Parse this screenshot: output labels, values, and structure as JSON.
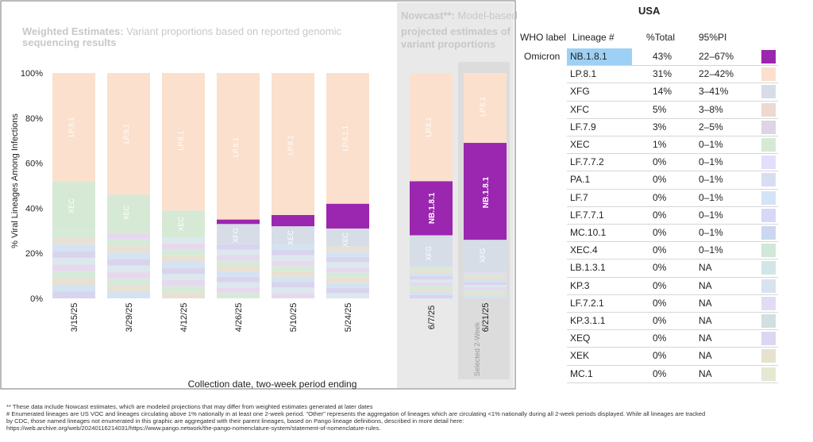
{
  "chart_data": {
    "type": "bar",
    "stacked": true,
    "left_panel_title_bold": "Weighted Estimates:",
    "left_panel_title_rest": "Variant proportions based on reported genomic sequencing results",
    "right_panel_title_bold": "Nowcast**:",
    "right_panel_title_rest": "Model-based projected estimates of variant proportions",
    "ylabel": "% Viral Lineages Among Infections",
    "xlabel": "Collection date, two-week period ending",
    "yticks": [
      "0%",
      "20%",
      "40%",
      "60%",
      "80%",
      "100%"
    ],
    "ylim": [
      0,
      100
    ],
    "selected_label": "Selected 2-Week",
    "categories": [
      "3/15/25",
      "3/29/25",
      "4/12/25",
      "4/26/25",
      "5/10/25",
      "5/24/25",
      "6/7/25",
      "6/21/25"
    ],
    "nowcast_start_index": 6,
    "series": [
      {
        "name": "NB.1.8.1",
        "color": "#9b26af",
        "values": [
          0,
          0,
          0,
          2,
          5,
          11,
          24,
          43
        ]
      },
      {
        "name": "LP.8.1",
        "color": "#fbe0cd",
        "values": [
          48,
          54,
          61,
          65,
          63,
          58,
          48,
          31
        ]
      },
      {
        "name": "XEC",
        "color": "#d6e9d4",
        "values": [
          22,
          17,
          12,
          0,
          0,
          0,
          0,
          0
        ]
      },
      {
        "name": "XFG",
        "color": "#d6dde7",
        "values": [
          0,
          0,
          0,
          9,
          8,
          8,
          14,
          14
        ]
      },
      {
        "name": "other",
        "color": "#e4e4ef",
        "values": [
          30,
          29,
          27,
          24,
          24,
          23,
          14,
          12
        ]
      }
    ],
    "bar_labels": [
      {
        "bar": 0,
        "text": "LP.8.1",
        "at": 76
      },
      {
        "bar": 1,
        "text": "LP.8.1",
        "at": 73
      },
      {
        "bar": 2,
        "text": "LP.8.1",
        "at": 70
      },
      {
        "bar": 3,
        "text": "LP.8.1",
        "at": 67
      },
      {
        "bar": 4,
        "text": "LP.8.1",
        "at": 68
      },
      {
        "bar": 5,
        "text": "LP.8.1.1",
        "at": 71
      },
      {
        "bar": 6,
        "text": "LP.8.1",
        "at": 76
      },
      {
        "bar": 7,
        "text": "LP.8.1",
        "at": 85
      },
      {
        "bar": 0,
        "text": "XEC",
        "at": 41
      },
      {
        "bar": 1,
        "text": "XEC",
        "at": 38
      },
      {
        "bar": 2,
        "text": "XEC",
        "at": 33
      },
      {
        "bar": 3,
        "text": "XFG",
        "at": 28
      },
      {
        "bar": 4,
        "text": "XEC",
        "at": 27
      },
      {
        "bar": 5,
        "text": "XEC",
        "at": 26
      },
      {
        "bar": 6,
        "text": "XFG",
        "at": 20
      },
      {
        "bar": 7,
        "text": "XFG",
        "at": 19
      }
    ],
    "big_labels": [
      {
        "bar": 6,
        "text": "NB.1.8.1",
        "at": 40
      },
      {
        "bar": 7,
        "text": "NB.1.8.1",
        "at": 47
      }
    ]
  },
  "table": {
    "title": "USA",
    "headers": {
      "who": "WHO label",
      "lineage": "Lineage #",
      "pct": "%Total",
      "pi": "95%PI"
    },
    "rows": [
      {
        "who": "Omicron",
        "lineage": "NB.1.8.1",
        "pct": "43%",
        "pi": "22–67%",
        "color": "#9b26af",
        "highlight": true
      },
      {
        "who": "",
        "lineage": "LP.8.1",
        "pct": "31%",
        "pi": "22–42%",
        "color": "#fbe0cd"
      },
      {
        "who": "",
        "lineage": "XFG",
        "pct": "14%",
        "pi": "3–41%",
        "color": "#d6dde7"
      },
      {
        "who": "",
        "lineage": "XFC",
        "pct": "5%",
        "pi": "3–8%",
        "color": "#ecd9cf"
      },
      {
        "who": "",
        "lineage": "LF.7.9",
        "pct": "3%",
        "pi": "2–5%",
        "color": "#ddd4e6"
      },
      {
        "who": "",
        "lineage": "XEC",
        "pct": "1%",
        "pi": "0–1%",
        "color": "#d6e9d4"
      },
      {
        "who": "",
        "lineage": "LF.7.7.2",
        "pct": "0%",
        "pi": "0–1%",
        "color": "#e3def9"
      },
      {
        "who": "",
        "lineage": "PA.1",
        "pct": "0%",
        "pi": "0–1%",
        "color": "#d7def2"
      },
      {
        "who": "",
        "lineage": "LF.7",
        "pct": "0%",
        "pi": "0–1%",
        "color": "#d3e4f5"
      },
      {
        "who": "",
        "lineage": "LF.7.7.1",
        "pct": "0%",
        "pi": "0–1%",
        "color": "#d7d8f7"
      },
      {
        "who": "",
        "lineage": "MC.10.1",
        "pct": "0%",
        "pi": "0–1%",
        "color": "#cbd7f0"
      },
      {
        "who": "",
        "lineage": "XEC.4",
        "pct": "0%",
        "pi": "0–1%",
        "color": "#cfe8d8"
      },
      {
        "who": "",
        "lineage": "LB.1.3.1",
        "pct": "0%",
        "pi": "NA",
        "color": "#d3e6e6"
      },
      {
        "who": "",
        "lineage": "KP.3",
        "pct": "0%",
        "pi": "NA",
        "color": "#d9e2ef"
      },
      {
        "who": "",
        "lineage": "LF.7.2.1",
        "pct": "0%",
        "pi": "NA",
        "color": "#e1dcf3"
      },
      {
        "who": "",
        "lineage": "KP.3.1.1",
        "pct": "0%",
        "pi": "NA",
        "color": "#cfe0de"
      },
      {
        "who": "",
        "lineage": "XEQ",
        "pct": "0%",
        "pi": "NA",
        "color": "#dcd6f2"
      },
      {
        "who": "",
        "lineage": "XEK",
        "pct": "0%",
        "pi": "NA",
        "color": "#e6e2cd"
      },
      {
        "who": "",
        "lineage": "MC.1",
        "pct": "0%",
        "pi": "NA",
        "color": "#e5e8d2"
      }
    ]
  },
  "footnotes": [
    "**    These data include Nowcast estimates, which are modeled projections that may differ from weighted estimates generated at later dates",
    "# Enumerated lineages are US VOC and lineages circulating above 1% nationally in at least one 2-week period. \"Other\" represents the aggregation of lineages which are circulating <1% nationally during all 2-week periods displayed.  While all lineages are tracked",
    "by CDC, those named lineages not enumerated in this graphic are aggregated with their parent lineages, based on Pango lineage definitions, described in more detail here:",
    "https://web.archive.org/web/20240116214031/https://www.pango.network/the-pango-nomenclature-system/statement-of-nomenclature-rules."
  ]
}
